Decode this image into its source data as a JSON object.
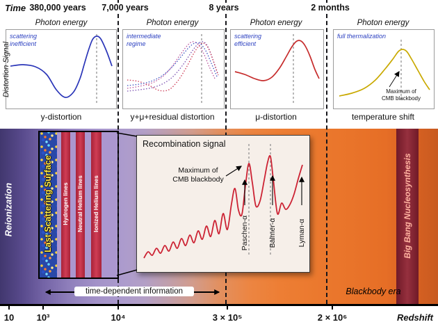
{
  "colors": {
    "y_distortion_curve": "#2a35b8",
    "intermediate_curves": [
      "#7a4fb0",
      "#b84f9a",
      "#cc3a55",
      "#3a4fc0"
    ],
    "mu_distortion_curve": "#c62b2b",
    "temperature_curve": "#c9a900",
    "recombination_curve": "#cc2233",
    "note_blue": "#2a3fc0",
    "band_left_purple": "#584a8c",
    "band_right_orange": "#e9742a",
    "line_stripe_red": "#c52f48",
    "bbn_stripe": "#8c2233"
  },
  "time_axis": {
    "label": "Time",
    "ticks": [
      "380,000 years",
      "7,000 years",
      "8 years",
      "2 months"
    ]
  },
  "y_axis_label": "Distortion Signal",
  "panels": [
    {
      "title": "Photon energy",
      "note": "scattering\ninefficient",
      "caption": "y-distortion"
    },
    {
      "title": "Photon energy",
      "note": "intermediate\nregime",
      "caption": "y+μ+residual distortion"
    },
    {
      "title": "Photon energy",
      "note": "scattering\nefficient",
      "caption": "μ-distortion"
    },
    {
      "title": "Photon energy",
      "note": "full thermalization",
      "caption": "temperature shift",
      "annotation": "Maximum of\nCMB blackbody"
    }
  ],
  "band": {
    "reionization_label": "Reionization",
    "last_scattering_label": "Last Scattering Surface",
    "line_labels": [
      "Hydrogen lines",
      "Neutral Helium lines",
      "Ionized Helium lines"
    ],
    "bbn_label": "Big Bang Nucleosynthesis",
    "blackbody_era_label": "Blackbody era",
    "time_dependent_label": "time-dependent information"
  },
  "inset": {
    "title": "Recombination signal",
    "max_annotation": "Maximum of\nCMB blackbody",
    "line_labels": [
      "Paschen-α",
      "Balmer-α",
      "Lyman-α"
    ]
  },
  "redshift_axis": {
    "ticks": [
      "10",
      "10³",
      "10⁴",
      "3 × 10⁵",
      "2 × 10⁶"
    ],
    "label": "Redshift"
  }
}
